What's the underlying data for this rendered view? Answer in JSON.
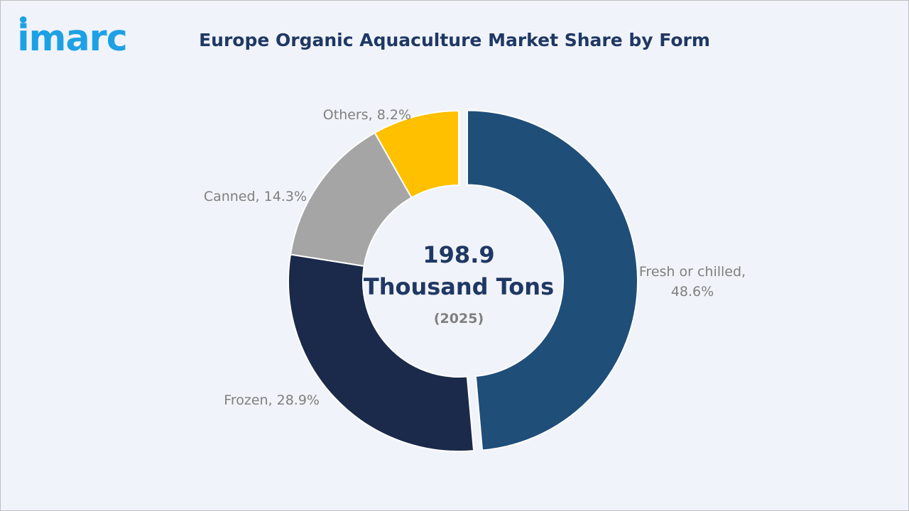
{
  "brand": {
    "logo_text": "imarc",
    "logo_color": "#1da1e4"
  },
  "chart_data": {
    "type": "pie",
    "title": "Europe Organic Aquaculture Market Share by Form",
    "center": {
      "value_line1": "198.9",
      "value_line2": "Thousand Tons",
      "year": "(2025)"
    },
    "slices": [
      {
        "label": "Fresh or chilled",
        "value": 48.6,
        "display": [
          "Fresh or chilled,",
          "48.6%"
        ],
        "color": "#1f4e79"
      },
      {
        "label": "Frozen",
        "value": 28.9,
        "display": [
          "Frozen, 28.9%"
        ],
        "color": "#1b2a4a"
      },
      {
        "label": "Canned",
        "value": 14.3,
        "display": [
          "Canned, 14.3%"
        ],
        "color": "#a5a5a5"
      },
      {
        "label": "Others",
        "value": 8.2,
        "display": [
          "Others, 8.2%"
        ],
        "color": "#ffc000"
      }
    ]
  }
}
